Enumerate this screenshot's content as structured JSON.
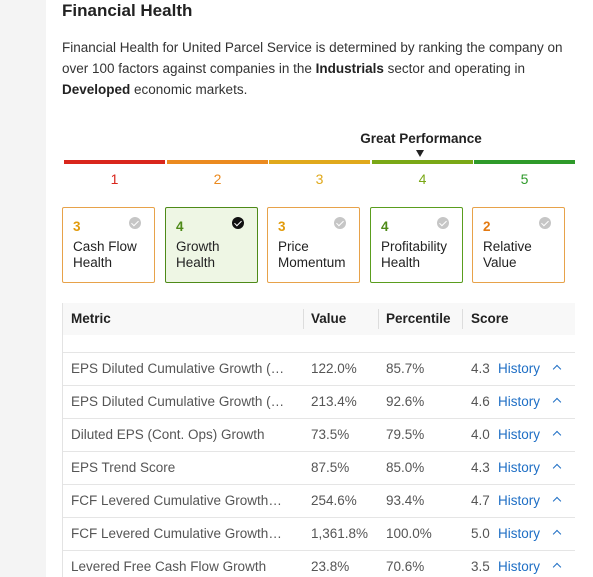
{
  "title": "Financial Health",
  "description": {
    "part1": "Financial Health for United Parcel Service is determined by ranking the company on over 100 factors against companies in the ",
    "sector": "Industrials",
    "part2": " sector and operating in ",
    "market": "Developed",
    "part3": " economic markets."
  },
  "performance": {
    "label": "Great Performance",
    "scale": [
      {
        "num": "1",
        "color": "#d9261c"
      },
      {
        "num": "2",
        "color": "#eb8a1f"
      },
      {
        "num": "3",
        "color": "#e0a91c"
      },
      {
        "num": "4",
        "color": "#7aa816"
      },
      {
        "num": "5",
        "color": "#2e9a2a"
      }
    ]
  },
  "cards": [
    {
      "score": "3",
      "label": "Cash Flow Health",
      "score_color": "#e29b0c"
    },
    {
      "score": "4",
      "label": "Growth Health",
      "score_color": "#4e8a18"
    },
    {
      "score": "3",
      "label": "Price Momentum",
      "score_color": "#e29b0c"
    },
    {
      "score": "4",
      "label": "Profitability Health",
      "score_color": "#4e8a18"
    },
    {
      "score": "2",
      "label": "Relative Value",
      "score_color": "#e37a12"
    }
  ],
  "table": {
    "headers": {
      "metric": "Metric",
      "value": "Value",
      "percentile": "Percentile",
      "score": "Score"
    },
    "history_label": "History",
    "rows": [
      {
        "metric": "EPS Diluted Cumulative Growth (…",
        "value": "122.0%",
        "percentile": "85.7%",
        "score": "4.3"
      },
      {
        "metric": "EPS Diluted Cumulative Growth (…",
        "value": "213.4%",
        "percentile": "92.6%",
        "score": "4.6"
      },
      {
        "metric": "Diluted EPS (Cont. Ops) Growth",
        "value": "73.5%",
        "percentile": "79.5%",
        "score": "4.0"
      },
      {
        "metric": "EPS Trend Score",
        "value": "87.5%",
        "percentile": "85.0%",
        "score": "4.3"
      },
      {
        "metric": "FCF Levered Cumulative Growth…",
        "value": "254.6%",
        "percentile": "93.4%",
        "score": "4.7"
      },
      {
        "metric": "FCF Levered Cumulative Growth…",
        "value": "1,361.8%",
        "percentile": "100.0%",
        "score": "5.0"
      },
      {
        "metric": "Levered Free Cash Flow Growth",
        "value": "23.8%",
        "percentile": "70.6%",
        "score": "3.5"
      }
    ]
  }
}
